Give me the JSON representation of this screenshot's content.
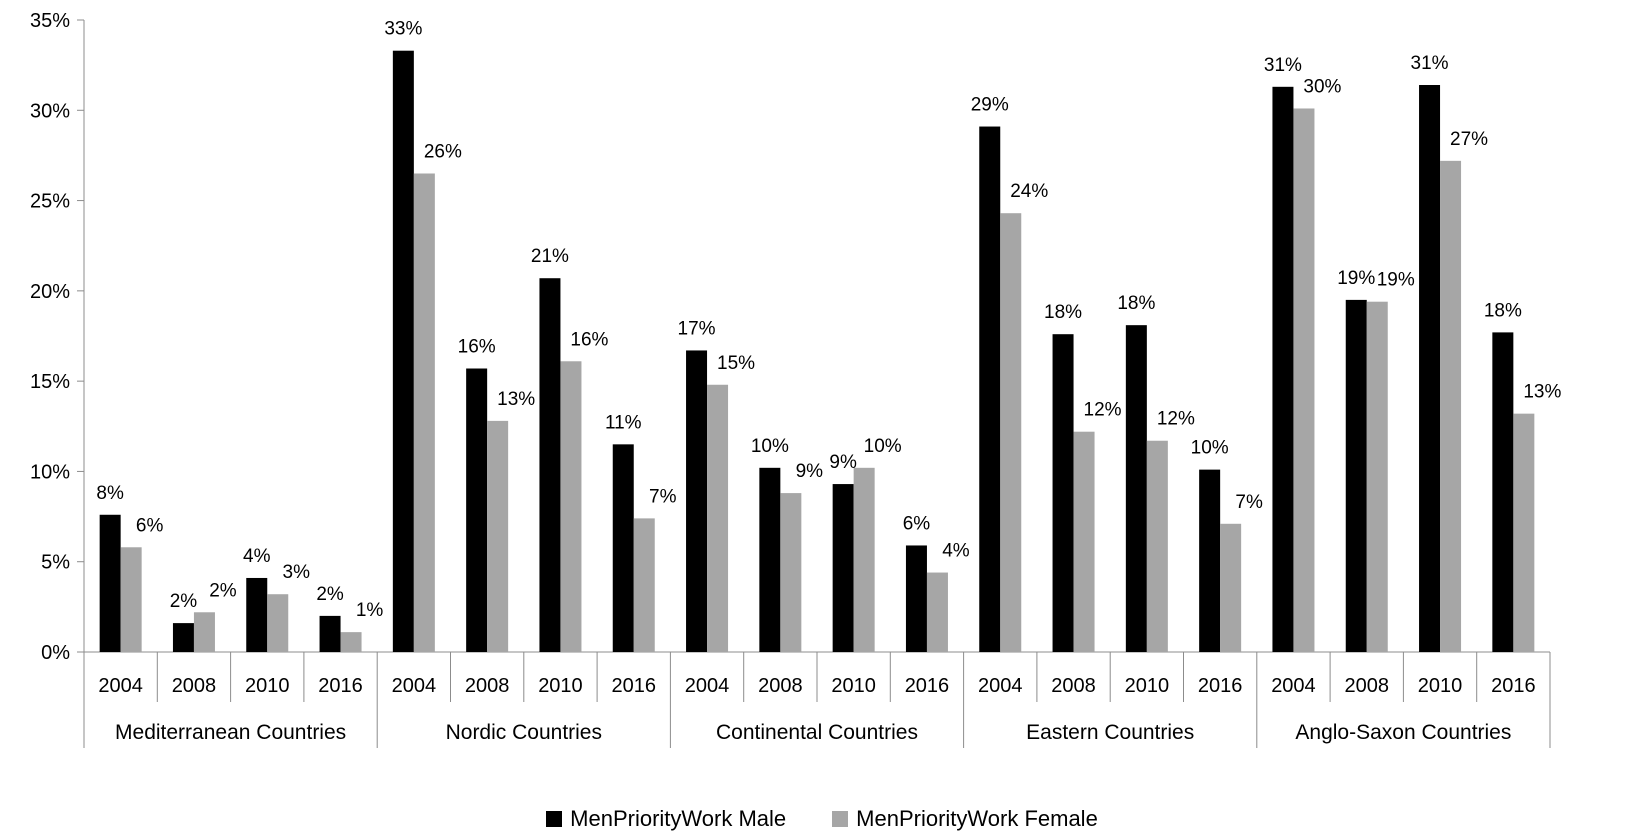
{
  "chart_data": {
    "type": "bar",
    "ylim": [
      0,
      35
    ],
    "y_ticks": [
      "0%",
      "5%",
      "10%",
      "15%",
      "20%",
      "25%",
      "30%",
      "35%"
    ],
    "groups": [
      {
        "label": "Mediterranean Countries",
        "years": [
          "2004",
          "2008",
          "2010",
          "2016"
        ],
        "male": [
          7.6,
          1.6,
          4.1,
          2.0
        ],
        "female": [
          5.8,
          2.2,
          3.2,
          1.1
        ],
        "male_labels": [
          "8%",
          "2%",
          "4%",
          "2%"
        ],
        "female_labels": [
          "6%",
          "2%",
          "3%",
          "1%"
        ]
      },
      {
        "label": "Nordic Countries",
        "years": [
          "2004",
          "2008",
          "2010",
          "2016"
        ],
        "male": [
          33.3,
          15.7,
          20.7,
          11.5
        ],
        "female": [
          26.5,
          12.8,
          16.1,
          7.4
        ],
        "male_labels": [
          "33%",
          "16%",
          "21%",
          "11%"
        ],
        "female_labels": [
          "26%",
          "13%",
          "16%",
          "7%"
        ]
      },
      {
        "label": "Continental Countries",
        "years": [
          "2004",
          "2008",
          "2010",
          "2016"
        ],
        "male": [
          16.7,
          10.2,
          9.3,
          5.9
        ],
        "female": [
          14.8,
          8.8,
          10.2,
          4.4
        ],
        "male_labels": [
          "17%",
          "10%",
          "9%",
          "6%"
        ],
        "female_labels": [
          "15%",
          "9%",
          "10%",
          "4%"
        ]
      },
      {
        "label": "Eastern Countries",
        "years": [
          "2004",
          "2008",
          "2010",
          "2016"
        ],
        "male": [
          29.1,
          17.6,
          18.1,
          10.1
        ],
        "female": [
          24.3,
          12.2,
          11.7,
          7.1
        ],
        "male_labels": [
          "29%",
          "18%",
          "18%",
          "10%"
        ],
        "female_labels": [
          "24%",
          "12%",
          "12%",
          "7%"
        ]
      },
      {
        "label": "Anglo-Saxon Countries",
        "years": [
          "2004",
          "2008",
          "2010",
          "2016"
        ],
        "male": [
          31.3,
          19.5,
          31.4,
          17.7
        ],
        "female": [
          30.1,
          19.4,
          27.2,
          13.2
        ],
        "male_labels": [
          "31%",
          "19%",
          "31%",
          "18%"
        ],
        "female_labels": [
          "30%",
          "19%",
          "27%",
          "13%"
        ]
      }
    ],
    "series": [
      {
        "name": "MenPriorityWork Male",
        "color": "#000000"
      },
      {
        "name": "MenPriorityWork Female",
        "color": "#a6a6a6"
      }
    ],
    "legend_position": "bottom",
    "grid": false
  }
}
